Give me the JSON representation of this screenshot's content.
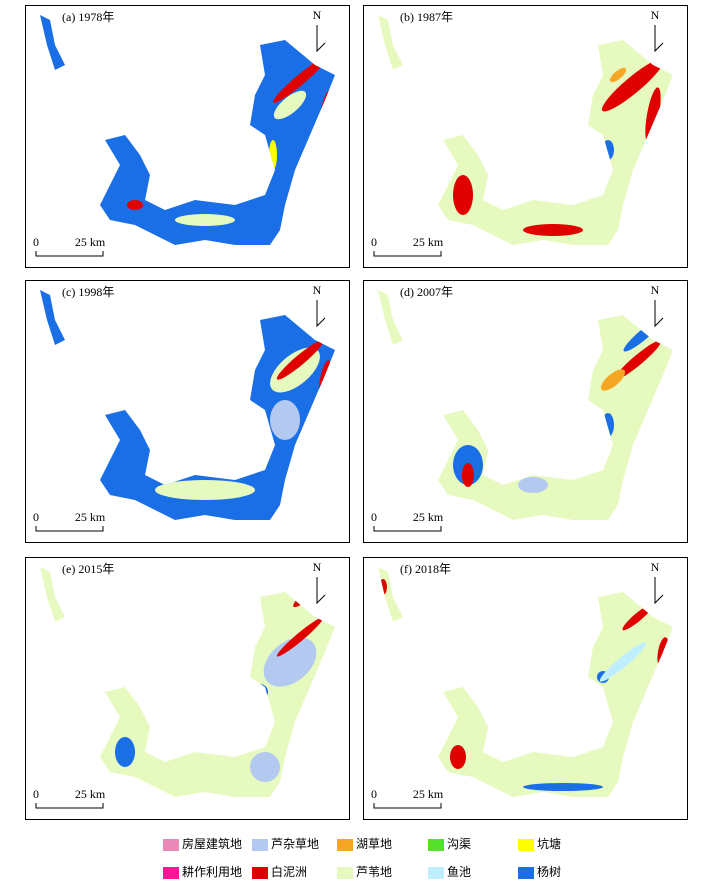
{
  "panels": [
    {
      "label": "(a) 1978年",
      "north": "N",
      "scale_start": "0",
      "scale_end": "25 km"
    },
    {
      "label": "(b) 1987年",
      "north": "N",
      "scale_start": "0",
      "scale_end": "25 km"
    },
    {
      "label": "(c) 1998年",
      "north": "N",
      "scale_start": "0",
      "scale_end": "25 km"
    },
    {
      "label": "(d) 2007年",
      "north": "N",
      "scale_start": "0",
      "scale_end": "25 km"
    },
    {
      "label": "(e) 2015年",
      "north": "N",
      "scale_start": "0",
      "scale_end": "25 km"
    },
    {
      "label": "(f) 2018年",
      "north": "N",
      "scale_start": "0",
      "scale_end": "25 km"
    }
  ],
  "legend": [
    {
      "label": "房屋建筑地",
      "color": "#e889b8"
    },
    {
      "label": "芦杂草地",
      "color": "#b3c9f0"
    },
    {
      "label": "湖草地",
      "color": "#f5a623"
    },
    {
      "label": "沟渠",
      "color": "#55e02a"
    },
    {
      "label": "坑塘",
      "color": "#ffff00"
    },
    {
      "label": "耕作利用地",
      "color": "#ff1493"
    },
    {
      "label": "白泥洲",
      "color": "#e00000"
    },
    {
      "label": "芦苇地",
      "color": "#e6fac0"
    },
    {
      "label": "鱼池",
      "color": "#bfeeff"
    },
    {
      "label": "杨树",
      "color": "#1a6fe6"
    }
  ]
}
